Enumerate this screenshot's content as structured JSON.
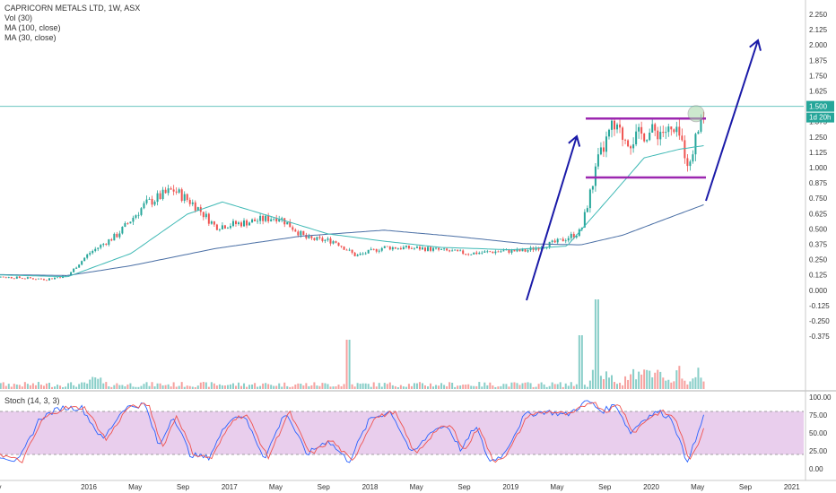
{
  "header": {
    "title": "CAPRICORN METALS LTD, 1W, ASX",
    "vol_label": "Vol (30)",
    "ma100_label": "MA (100, close)",
    "ma30_label": "MA (30, close)"
  },
  "stoch": {
    "label": "Stoch (14, 3, 3)"
  },
  "price_badge": "1.500",
  "countdown_badge": "1d 20h",
  "colors": {
    "up": "#26a69a",
    "down": "#ef5350",
    "ma100": "#4a6fa5",
    "ma30": "#3fb9b5",
    "price_line": "#6cc5c0",
    "channel": "#9c27b0",
    "arrow": "#1a1aa8",
    "stoch_k": "#2962ff",
    "stoch_d": "#ef5350",
    "stoch_band": "#e1bee7"
  },
  "chart_data": {
    "type": "line",
    "title": "CAPRICORN METALS LTD, 1W, ASX",
    "price_axis_ticks": [
      "2.250",
      "2.125",
      "2.000",
      "1.875",
      "1.750",
      "1.625",
      "1.500",
      "1.375",
      "1.250",
      "1.125",
      "1.000",
      "0.875",
      "0.750",
      "0.625",
      "0.500",
      "0.375",
      "0.250",
      "0.125",
      "0.000",
      "-0.125",
      "-0.250",
      "-0.375"
    ],
    "stoch_axis_ticks": [
      "100.00",
      "75.00",
      "50.00",
      "25.00",
      "0.00"
    ],
    "time_axis_ticks": [
      "May",
      "2016",
      "May",
      "Sep",
      "2017",
      "May",
      "Sep",
      "2018",
      "May",
      "Sep",
      "2019",
      "May",
      "Sep",
      "2020",
      "May",
      "Sep",
      "2021"
    ],
    "price_line_level": 1.5,
    "channel": {
      "upper": 1.4,
      "lower": 0.92
    },
    "price_keypoints": [
      {
        "t": 2015.2,
        "v": 0.12
      },
      {
        "t": 2015.7,
        "v": 0.09
      },
      {
        "t": 2015.85,
        "v": 0.12
      },
      {
        "t": 2016.0,
        "v": 0.3
      },
      {
        "t": 2016.2,
        "v": 0.45
      },
      {
        "t": 2016.4,
        "v": 0.7
      },
      {
        "t": 2016.6,
        "v": 0.82
      },
      {
        "t": 2016.75,
        "v": 0.7
      },
      {
        "t": 2016.9,
        "v": 0.52
      },
      {
        "t": 2017.1,
        "v": 0.55
      },
      {
        "t": 2017.35,
        "v": 0.6
      },
      {
        "t": 2017.55,
        "v": 0.42
      },
      {
        "t": 2017.75,
        "v": 0.4
      },
      {
        "t": 2017.9,
        "v": 0.28
      },
      {
        "t": 2018.1,
        "v": 0.35
      },
      {
        "t": 2018.4,
        "v": 0.34
      },
      {
        "t": 2018.7,
        "v": 0.3
      },
      {
        "t": 2018.95,
        "v": 0.32
      },
      {
        "t": 2019.1,
        "v": 0.32
      },
      {
        "t": 2019.35,
        "v": 0.4
      },
      {
        "t": 2019.5,
        "v": 0.48
      },
      {
        "t": 2019.62,
        "v": 1.05
      },
      {
        "t": 2019.72,
        "v": 1.32
      },
      {
        "t": 2019.85,
        "v": 1.22
      },
      {
        "t": 2019.95,
        "v": 1.28
      },
      {
        "t": 2020.1,
        "v": 1.3
      },
      {
        "t": 2020.2,
        "v": 1.25
      },
      {
        "t": 2020.28,
        "v": 1.0
      },
      {
        "t": 2020.32,
        "v": 1.35
      },
      {
        "t": 2020.38,
        "v": 1.45
      }
    ],
    "ma30_keypoints": [
      {
        "t": 2015.2,
        "v": 0.13
      },
      {
        "t": 2015.85,
        "v": 0.11
      },
      {
        "t": 2016.3,
        "v": 0.3
      },
      {
        "t": 2016.7,
        "v": 0.62
      },
      {
        "t": 2016.95,
        "v": 0.72
      },
      {
        "t": 2017.3,
        "v": 0.6
      },
      {
        "t": 2017.7,
        "v": 0.46
      },
      {
        "t": 2018.1,
        "v": 0.4
      },
      {
        "t": 2018.5,
        "v": 0.35
      },
      {
        "t": 2019.0,
        "v": 0.33
      },
      {
        "t": 2019.4,
        "v": 0.36
      },
      {
        "t": 2019.7,
        "v": 0.75
      },
      {
        "t": 2019.95,
        "v": 1.08
      },
      {
        "t": 2020.2,
        "v": 1.15
      },
      {
        "t": 2020.38,
        "v": 1.18
      }
    ],
    "ma100_keypoints": [
      {
        "t": 2015.2,
        "v": 0.13
      },
      {
        "t": 2015.85,
        "v": 0.12
      },
      {
        "t": 2016.3,
        "v": 0.2
      },
      {
        "t": 2016.9,
        "v": 0.34
      },
      {
        "t": 2017.5,
        "v": 0.44
      },
      {
        "t": 2018.1,
        "v": 0.49
      },
      {
        "t": 2018.6,
        "v": 0.44
      },
      {
        "t": 2019.1,
        "v": 0.38
      },
      {
        "t": 2019.5,
        "v": 0.37
      },
      {
        "t": 2019.8,
        "v": 0.45
      },
      {
        "t": 2020.1,
        "v": 0.58
      },
      {
        "t": 2020.38,
        "v": 0.7
      }
    ],
    "stoch_keypoints": [
      {
        "t": 2015.2,
        "v": 60
      },
      {
        "t": 2015.35,
        "v": 20
      },
      {
        "t": 2015.5,
        "v": 10
      },
      {
        "t": 2015.65,
        "v": 70
      },
      {
        "t": 2015.8,
        "v": 85
      },
      {
        "t": 2015.95,
        "v": 85
      },
      {
        "t": 2016.1,
        "v": 40
      },
      {
        "t": 2016.25,
        "v": 85
      },
      {
        "t": 2016.4,
        "v": 90
      },
      {
        "t": 2016.5,
        "v": 30
      },
      {
        "t": 2016.6,
        "v": 75
      },
      {
        "t": 2016.72,
        "v": 20
      },
      {
        "t": 2016.85,
        "v": 15
      },
      {
        "t": 2017.0,
        "v": 70
      },
      {
        "t": 2017.1,
        "v": 75
      },
      {
        "t": 2017.25,
        "v": 15
      },
      {
        "t": 2017.4,
        "v": 80
      },
      {
        "t": 2017.55,
        "v": 20
      },
      {
        "t": 2017.7,
        "v": 40
      },
      {
        "t": 2017.85,
        "v": 10
      },
      {
        "t": 2018.0,
        "v": 70
      },
      {
        "t": 2018.15,
        "v": 80
      },
      {
        "t": 2018.3,
        "v": 20
      },
      {
        "t": 2018.45,
        "v": 55
      },
      {
        "t": 2018.55,
        "v": 60
      },
      {
        "t": 2018.65,
        "v": 25
      },
      {
        "t": 2018.75,
        "v": 60
      },
      {
        "t": 2018.85,
        "v": 10
      },
      {
        "t": 2018.95,
        "v": 20
      },
      {
        "t": 2019.1,
        "v": 75
      },
      {
        "t": 2019.25,
        "v": 80
      },
      {
        "t": 2019.4,
        "v": 75
      },
      {
        "t": 2019.55,
        "v": 95
      },
      {
        "t": 2019.65,
        "v": 80
      },
      {
        "t": 2019.75,
        "v": 90
      },
      {
        "t": 2019.85,
        "v": 50
      },
      {
        "t": 2019.95,
        "v": 70
      },
      {
        "t": 2020.05,
        "v": 80
      },
      {
        "t": 2020.15,
        "v": 70
      },
      {
        "t": 2020.25,
        "v": 10
      },
      {
        "t": 2020.32,
        "v": 40
      },
      {
        "t": 2020.38,
        "v": 80
      }
    ]
  }
}
